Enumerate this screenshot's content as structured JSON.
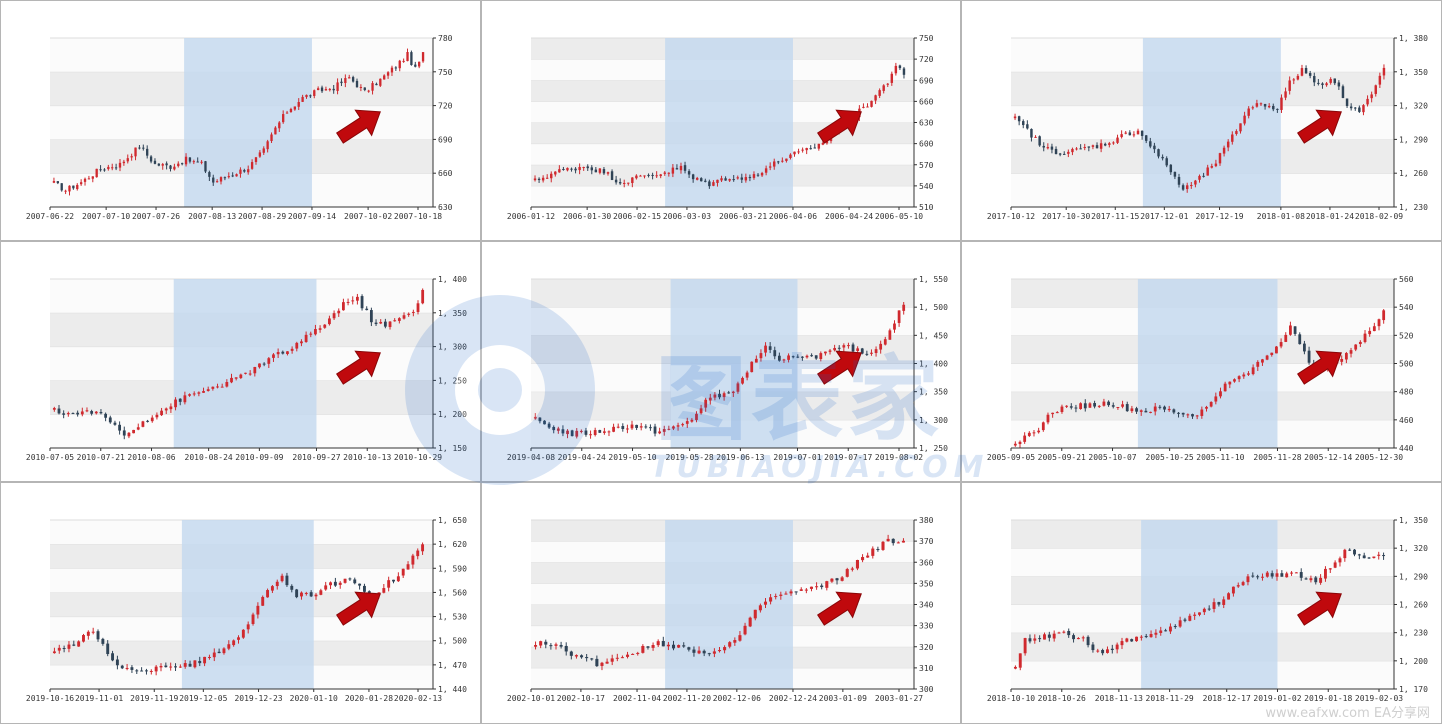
{
  "chart_data": [
    {
      "type": "candlestick",
      "x_ticks": [
        "2007-06-22",
        "2007-07-10",
        "2007-07-26",
        "2007-08-13",
        "2007-08-29",
        "2007-09-14",
        "2007-10-02",
        "2007-10-18"
      ],
      "y_ticks": [
        630,
        660,
        690,
        720,
        750,
        780
      ],
      "ylim": [
        630,
        780
      ],
      "highlight": [
        "2007-08-04",
        "2007-09-14"
      ],
      "arrow": "up-right",
      "anchors": [
        [
          0,
          651
        ],
        [
          3,
          645
        ],
        [
          7,
          652
        ],
        [
          12,
          664
        ],
        [
          17,
          668
        ],
        [
          22,
          684
        ],
        [
          26,
          668
        ],
        [
          30,
          666
        ],
        [
          34,
          672
        ],
        [
          38,
          668
        ],
        [
          41,
          652
        ],
        [
          45,
          658
        ],
        [
          50,
          665
        ],
        [
          54,
          680
        ],
        [
          57,
          700
        ],
        [
          60,
          715
        ],
        [
          64,
          727
        ],
        [
          68,
          733
        ],
        [
          72,
          736
        ],
        [
          76,
          745
        ],
        [
          80,
          732
        ],
        [
          84,
          743
        ],
        [
          88,
          755
        ],
        [
          91,
          765
        ],
        [
          93,
          752
        ],
        [
          95,
          766
        ]
      ]
    },
    {
      "type": "candlestick",
      "x_ticks": [
        "2006-01-12",
        "2006-01-30",
        "2006-02-15",
        "2006-03-03",
        "2006-03-21",
        "2006-04-06",
        "2006-04-24",
        "2006-05-10"
      ],
      "y_ticks": [
        510,
        540,
        570,
        600,
        630,
        660,
        690,
        720,
        750
      ],
      "ylim": [
        510,
        750
      ],
      "highlight": [
        "2006-02-24",
        "2006-04-06"
      ],
      "arrow": "up-right",
      "anchors": [
        [
          0,
          547
        ],
        [
          5,
          560
        ],
        [
          12,
          568
        ],
        [
          17,
          560
        ],
        [
          21,
          545
        ],
        [
          26,
          553
        ],
        [
          31,
          558
        ],
        [
          36,
          566
        ],
        [
          39,
          550
        ],
        [
          43,
          543
        ],
        [
          48,
          553
        ],
        [
          52,
          550
        ],
        [
          57,
          565
        ],
        [
          61,
          578
        ],
        [
          64,
          585
        ],
        [
          68,
          592
        ],
        [
          72,
          605
        ],
        [
          75,
          625
        ],
        [
          79,
          640
        ],
        [
          83,
          662
        ],
        [
          87,
          688
        ],
        [
          89,
          712
        ],
        [
          91,
          695
        ]
      ]
    },
    {
      "type": "candlestick",
      "x_ticks": [
        "2017-10-12",
        "2017-10-30",
        "2017-11-15",
        "2017-12-01",
        "2017-12-19",
        "2018-01-08",
        "2018-01-24",
        "2018-02-09"
      ],
      "y_ticks": [
        1230,
        1260,
        1290,
        1320,
        1350,
        1380
      ],
      "ylim": [
        1230,
        1380
      ],
      "highlight": [
        "2017-11-24",
        "2018-01-08"
      ],
      "arrow": "up-right",
      "anchors": [
        [
          0,
          1308
        ],
        [
          3,
          1298
        ],
        [
          7,
          1282
        ],
        [
          12,
          1278
        ],
        [
          17,
          1282
        ],
        [
          22,
          1286
        ],
        [
          26,
          1293
        ],
        [
          30,
          1298
        ],
        [
          34,
          1280
        ],
        [
          38,
          1262
        ],
        [
          41,
          1245
        ],
        [
          45,
          1255
        ],
        [
          49,
          1270
        ],
        [
          53,
          1292
        ],
        [
          57,
          1318
        ],
        [
          60,
          1322
        ],
        [
          64,
          1318
        ],
        [
          67,
          1340
        ],
        [
          70,
          1352
        ],
        [
          74,
          1340
        ],
        [
          78,
          1342
        ],
        [
          81,
          1322
        ],
        [
          84,
          1315
        ],
        [
          87,
          1330
        ],
        [
          90,
          1352
        ]
      ]
    },
    {
      "type": "candlestick",
      "x_ticks": [
        "2010-07-05",
        "2010-07-21",
        "2010-08-06",
        "2010-08-24",
        "2010-09-09",
        "2010-09-27",
        "2010-10-13",
        "2010-10-29"
      ],
      "y_ticks": [
        1150,
        1200,
        1250,
        1300,
        1350,
        1400
      ],
      "ylim": [
        1150,
        1400
      ],
      "highlight": [
        "2010-08-13",
        "2010-09-27"
      ],
      "arrow": "up-right",
      "anchors": [
        [
          0,
          1205
        ],
        [
          4,
          1200
        ],
        [
          8,
          1205
        ],
        [
          12,
          1190
        ],
        [
          15,
          1168
        ],
        [
          19,
          1190
        ],
        [
          23,
          1205
        ],
        [
          27,
          1222
        ],
        [
          31,
          1232
        ],
        [
          35,
          1242
        ],
        [
          39,
          1252
        ],
        [
          43,
          1268
        ],
        [
          47,
          1285
        ],
        [
          51,
          1298
        ],
        [
          55,
          1318
        ],
        [
          59,
          1340
        ],
        [
          62,
          1365
        ],
        [
          65,
          1370
        ],
        [
          68,
          1340
        ],
        [
          71,
          1330
        ],
        [
          74,
          1342
        ],
        [
          77,
          1350
        ],
        [
          79,
          1385
        ]
      ]
    },
    {
      "type": "candlestick",
      "x_ticks": [
        "2019-04-08",
        "2019-04-24",
        "2019-05-10",
        "2019-05-28",
        "2019-06-13",
        "2019-07-01",
        "2019-07-17",
        "2019-08-02"
      ],
      "y_ticks": [
        1250,
        1300,
        1350,
        1400,
        1450,
        1500,
        1550
      ],
      "ylim": [
        1250,
        1550
      ],
      "highlight": [
        "2019-05-22",
        "2019-07-01"
      ],
      "arrow": "up-right",
      "anchors": [
        [
          0,
          1300
        ],
        [
          4,
          1285
        ],
        [
          8,
          1275
        ],
        [
          13,
          1278
        ],
        [
          17,
          1285
        ],
        [
          21,
          1290
        ],
        [
          26,
          1280
        ],
        [
          30,
          1285
        ],
        [
          34,
          1300
        ],
        [
          37,
          1335
        ],
        [
          41,
          1345
        ],
        [
          44,
          1360
        ],
        [
          47,
          1400
        ],
        [
          50,
          1430
        ],
        [
          53,
          1400
        ],
        [
          56,
          1415
        ],
        [
          60,
          1412
        ],
        [
          64,
          1420
        ],
        [
          68,
          1430
        ],
        [
          71,
          1418
        ],
        [
          74,
          1425
        ],
        [
          77,
          1460
        ],
        [
          80,
          1505
        ]
      ]
    },
    {
      "type": "candlestick",
      "x_ticks": [
        "2005-09-05",
        "2005-09-21",
        "2005-10-07",
        "2005-10-25",
        "2005-11-10",
        "2005-11-28",
        "2005-12-14",
        "2005-12-30"
      ],
      "y_ticks": [
        440,
        460,
        480,
        500,
        520,
        540,
        560
      ],
      "ylim": [
        440,
        560
      ],
      "highlight": [
        "2005-10-15",
        "2005-11-28"
      ],
      "arrow": "up-right",
      "anchors": [
        [
          0,
          445
        ],
        [
          4,
          450
        ],
        [
          8,
          466
        ],
        [
          12,
          470
        ],
        [
          16,
          470
        ],
        [
          20,
          472
        ],
        [
          24,
          468
        ],
        [
          28,
          466
        ],
        [
          31,
          468
        ],
        [
          35,
          465
        ],
        [
          38,
          463
        ],
        [
          41,
          468
        ],
        [
          44,
          482
        ],
        [
          48,
          490
        ],
        [
          52,
          500
        ],
        [
          56,
          512
        ],
        [
          59,
          527
        ],
        [
          61,
          512
        ],
        [
          63,
          502
        ],
        [
          66,
          497
        ],
        [
          70,
          505
        ],
        [
          74,
          515
        ],
        [
          77,
          528
        ],
        [
          79,
          538
        ]
      ]
    },
    {
      "type": "candlestick",
      "x_ticks": [
        "2019-10-16",
        "2019-11-01",
        "2019-11-19",
        "2019-12-05",
        "2019-12-23",
        "2020-01-10",
        "2020-01-28",
        "2020-02-13"
      ],
      "y_ticks": [
        1440,
        1470,
        1500,
        1530,
        1560,
        1590,
        1620,
        1650
      ],
      "ylim": [
        1440,
        1650
      ],
      "highlight": [
        "2019-11-28",
        "2020-01-10"
      ],
      "arrow": "up-right",
      "anchors": [
        [
          0,
          1490
        ],
        [
          4,
          1495
        ],
        [
          8,
          1512
        ],
        [
          11,
          1485
        ],
        [
          14,
          1465
        ],
        [
          18,
          1460
        ],
        [
          22,
          1470
        ],
        [
          25,
          1468
        ],
        [
          29,
          1472
        ],
        [
          33,
          1482
        ],
        [
          37,
          1500
        ],
        [
          41,
          1530
        ],
        [
          44,
          1565
        ],
        [
          47,
          1580
        ],
        [
          50,
          1555
        ],
        [
          54,
          1560
        ],
        [
          58,
          1572
        ],
        [
          62,
          1575
        ],
        [
          65,
          1555
        ],
        [
          68,
          1568
        ],
        [
          71,
          1580
        ],
        [
          74,
          1605
        ],
        [
          76,
          1618
        ]
      ]
    },
    {
      "type": "candlestick",
      "x_ticks": [
        "2002-10-01",
        "2002-10-17",
        "2002-11-04",
        "2002-11-20",
        "2002-12-06",
        "2002-12-24",
        "2003-01-09",
        "2003-01-27"
      ],
      "y_ticks": [
        300,
        310,
        320,
        330,
        340,
        350,
        360,
        370,
        380
      ],
      "ylim": [
        300,
        380
      ],
      "highlight": [
        "2002-11-13",
        "2002-12-24"
      ],
      "arrow": "up-right",
      "anchors": [
        [
          0,
          322
        ],
        [
          4,
          320
        ],
        [
          8,
          316
        ],
        [
          12,
          312
        ],
        [
          16,
          315
        ],
        [
          20,
          318
        ],
        [
          24,
          322
        ],
        [
          28,
          320
        ],
        [
          32,
          318
        ],
        [
          36,
          318
        ],
        [
          40,
          325
        ],
        [
          44,
          340
        ],
        [
          47,
          344
        ],
        [
          51,
          346
        ],
        [
          55,
          348
        ],
        [
          59,
          352
        ],
        [
          63,
          360
        ],
        [
          66,
          366
        ],
        [
          69,
          370
        ],
        [
          72,
          369
        ]
      ]
    },
    {
      "type": "candlestick",
      "x_ticks": [
        "2018-10-10",
        "2018-10-26",
        "2018-11-13",
        "2018-11-29",
        "2018-12-17",
        "2019-01-02",
        "2019-01-18",
        "2019-02-03"
      ],
      "y_ticks": [
        1170,
        1200,
        1230,
        1260,
        1290,
        1320,
        1350
      ],
      "ylim": [
        1170,
        1350
      ],
      "highlight": [
        "2018-11-20",
        "2019-01-02"
      ],
      "arrow": "up-right",
      "anchors": [
        [
          0,
          1196
        ],
        [
          2,
          1222
        ],
        [
          6,
          1226
        ],
        [
          10,
          1230
        ],
        [
          14,
          1222
        ],
        [
          18,
          1205
        ],
        [
          22,
          1222
        ],
        [
          26,
          1225
        ],
        [
          30,
          1232
        ],
        [
          34,
          1240
        ],
        [
          38,
          1252
        ],
        [
          42,
          1262
        ],
        [
          46,
          1282
        ],
        [
          50,
          1292
        ],
        [
          54,
          1293
        ],
        [
          58,
          1292
        ],
        [
          62,
          1285
        ],
        [
          65,
          1300
        ],
        [
          68,
          1318
        ],
        [
          71,
          1312
        ],
        [
          74,
          1310
        ],
        [
          76,
          1312
        ]
      ]
    }
  ],
  "colors": {
    "up": "#d0292e",
    "down": "#2f4356",
    "highlight": "#c3d8ef",
    "band": "#ececec",
    "arrow": "#c0090d",
    "border": "#b5b5b5"
  },
  "watermark": {
    "cn": "图表家",
    "en": "TUBIAOJIA.COM"
  },
  "footer": "www.eafxw.com    EA分享网"
}
